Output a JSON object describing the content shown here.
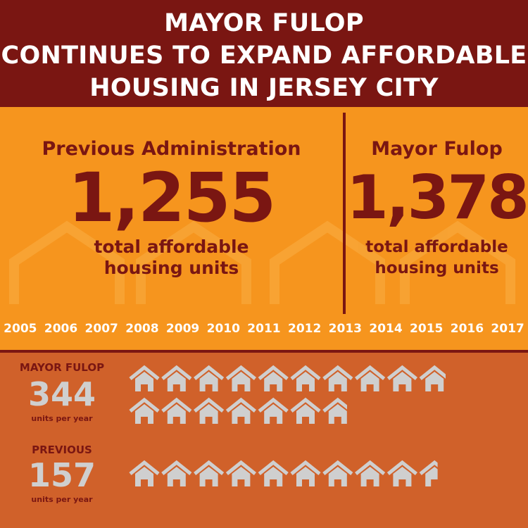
{
  "header": {
    "line1": "MAYOR FULOP",
    "line2": "CONTINUES TO EXPAND AFFORDABLE",
    "line3": "HOUSING IN JERSEY CITY"
  },
  "previous": {
    "title": "Previous Administration",
    "number": "1,255",
    "sub1": "total affordable",
    "sub2": "housing units"
  },
  "mayor": {
    "title": "Mayor Fulop",
    "number": "1,378",
    "sub1": "total affordable",
    "sub2": "housing units"
  },
  "years": [
    "2005",
    "2006",
    "2007",
    "2008",
    "2009",
    "2010",
    "2011",
    "2012",
    "2013",
    "2014",
    "2015",
    "2016",
    "2017"
  ],
  "per_year": {
    "mayor": {
      "label": "MAYOR FULOP",
      "number": "344",
      "unit": "units per year",
      "houses": 16.8
    },
    "previous": {
      "label": "PREVIOUS",
      "number": "157",
      "unit": "units per year",
      "houses": 9.6
    }
  },
  "colors": {
    "dark_red": "#7a1612",
    "orange": "#f6951e",
    "burnt_orange": "#d0612a",
    "house_grey": "#cfcfcf"
  }
}
